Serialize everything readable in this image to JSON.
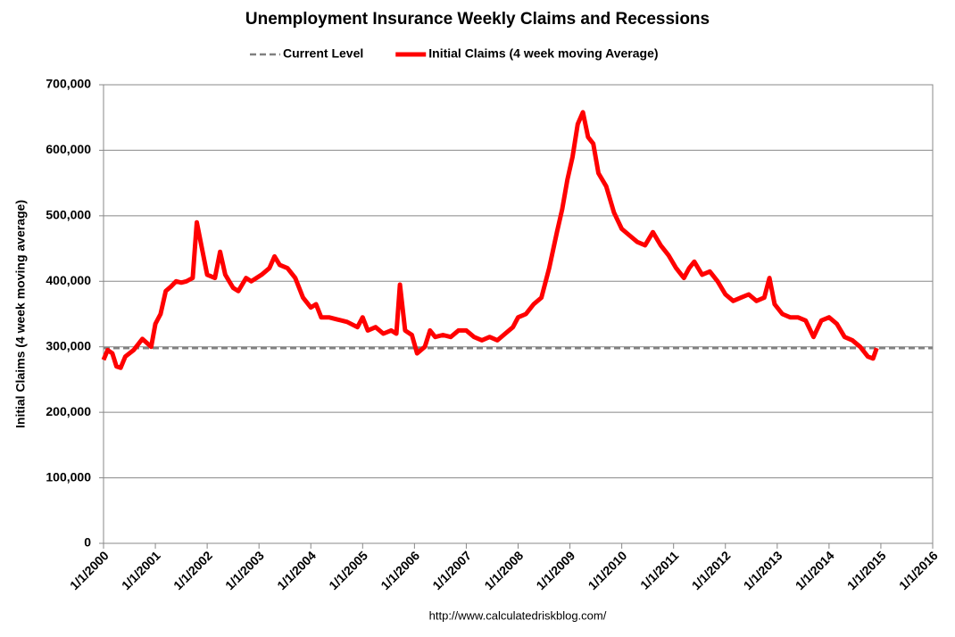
{
  "chart_data": {
    "type": "line",
    "title": "Unemployment Insurance Weekly Claims and Recessions",
    "y_label": "Initial Claims (4 week moving average)",
    "source": "http://www.calculatedriskblog.com/",
    "legend": "top",
    "grid": true,
    "xlim": [
      2000,
      2016
    ],
    "ylim": [
      0,
      700000
    ],
    "xticks": [
      {
        "value": 2000,
        "label": "1/1/2000"
      },
      {
        "value": 2001,
        "label": "1/1/2001"
      },
      {
        "value": 2002,
        "label": "1/1/2002"
      },
      {
        "value": 2003,
        "label": "1/1/2003"
      },
      {
        "value": 2004,
        "label": "1/1/2004"
      },
      {
        "value": 2005,
        "label": "1/1/2005"
      },
      {
        "value": 2006,
        "label": "1/1/2006"
      },
      {
        "value": 2007,
        "label": "1/1/2007"
      },
      {
        "value": 2008,
        "label": "1/1/2008"
      },
      {
        "value": 2009,
        "label": "1/1/2009"
      },
      {
        "value": 2010,
        "label": "1/1/2010"
      },
      {
        "value": 2011,
        "label": "1/1/2011"
      },
      {
        "value": 2012,
        "label": "1/1/2012"
      },
      {
        "value": 2013,
        "label": "1/1/2013"
      },
      {
        "value": 2014,
        "label": "1/1/2014"
      },
      {
        "value": 2015,
        "label": "1/1/2015"
      },
      {
        "value": 2016,
        "label": "1/1/2016"
      }
    ],
    "yticks": [
      0,
      {
        "value": 100000,
        "label": "100,000"
      },
      {
        "value": 200000,
        "label": "200,000"
      },
      {
        "value": 300000,
        "label": "300,000"
      },
      {
        "value": 400000,
        "label": "400,000"
      },
      {
        "value": 500000,
        "label": "500,000"
      },
      {
        "value": 600000,
        "label": "600,000"
      },
      {
        "value": 700000,
        "label": "700,000"
      }
    ],
    "series": [
      {
        "name": "Current Level",
        "color": "#808080",
        "dashed": true,
        "x": [
          2000,
          2016
        ],
        "values": [
          298000,
          298000
        ]
      },
      {
        "name": "Initial Claims (4 week moving Average)",
        "color": "#ff0000",
        "dashed": false,
        "x": [
          2000,
          2000.08,
          2000.17,
          2000.25,
          2000.33,
          2000.42,
          2000.58,
          2000.75,
          2000.92,
          2001.0,
          2001.1,
          2001.2,
          2001.3,
          2001.4,
          2001.5,
          2001.6,
          2001.72,
          2001.8,
          2001.9,
          2002.0,
          2002.15,
          2002.25,
          2002.35,
          2002.5,
          2002.6,
          2002.75,
          2002.85,
          2002.95,
          2003.05,
          2003.2,
          2003.3,
          2003.4,
          2003.55,
          2003.7,
          2003.85,
          2004.0,
          2004.1,
          2004.2,
          2004.35,
          2004.5,
          2004.7,
          2004.9,
          2005.0,
          2005.1,
          2005.25,
          2005.4,
          2005.55,
          2005.65,
          2005.72,
          2005.82,
          2005.95,
          2006.05,
          2006.2,
          2006.3,
          2006.4,
          2006.55,
          2006.7,
          2006.85,
          2007.0,
          2007.15,
          2007.3,
          2007.45,
          2007.6,
          2007.75,
          2007.9,
          2008.0,
          2008.15,
          2008.3,
          2008.45,
          2008.6,
          2008.75,
          2008.85,
          2008.95,
          2009.05,
          2009.15,
          2009.25,
          2009.35,
          2009.45,
          2009.55,
          2009.7,
          2009.85,
          2010.0,
          2010.15,
          2010.3,
          2010.45,
          2010.6,
          2010.75,
          2010.9,
          2011.05,
          2011.2,
          2011.3,
          2011.4,
          2011.55,
          2011.7,
          2011.85,
          2012.0,
          2012.15,
          2012.3,
          2012.45,
          2012.6,
          2012.75,
          2012.85,
          2012.95,
          2013.1,
          2013.25,
          2013.4,
          2013.55,
          2013.7,
          2013.85,
          2014.0,
          2014.15,
          2014.3,
          2014.45,
          2014.6,
          2014.75,
          2014.85,
          2014.92
        ],
        "values": [
          280000,
          295000,
          290000,
          270000,
          268000,
          285000,
          295000,
          312000,
          300000,
          335000,
          350000,
          385000,
          392000,
          400000,
          398000,
          400000,
          405000,
          490000,
          450000,
          410000,
          405000,
          445000,
          410000,
          390000,
          385000,
          405000,
          400000,
          405000,
          410000,
          420000,
          438000,
          425000,
          420000,
          405000,
          375000,
          360000,
          365000,
          345000,
          345000,
          342000,
          338000,
          330000,
          345000,
          325000,
          330000,
          320000,
          325000,
          320000,
          395000,
          325000,
          318000,
          290000,
          300000,
          325000,
          315000,
          318000,
          315000,
          325000,
          325000,
          315000,
          310000,
          315000,
          310000,
          320000,
          330000,
          345000,
          350000,
          365000,
          375000,
          420000,
          475000,
          510000,
          555000,
          590000,
          640000,
          658000,
          620000,
          610000,
          565000,
          545000,
          505000,
          480000,
          470000,
          460000,
          455000,
          475000,
          455000,
          440000,
          420000,
          405000,
          420000,
          430000,
          410000,
          415000,
          400000,
          380000,
          370000,
          375000,
          380000,
          370000,
          375000,
          405000,
          365000,
          350000,
          345000,
          345000,
          340000,
          315000,
          340000,
          345000,
          335000,
          315000,
          310000,
          300000,
          285000,
          282000,
          298000
        ]
      }
    ]
  }
}
